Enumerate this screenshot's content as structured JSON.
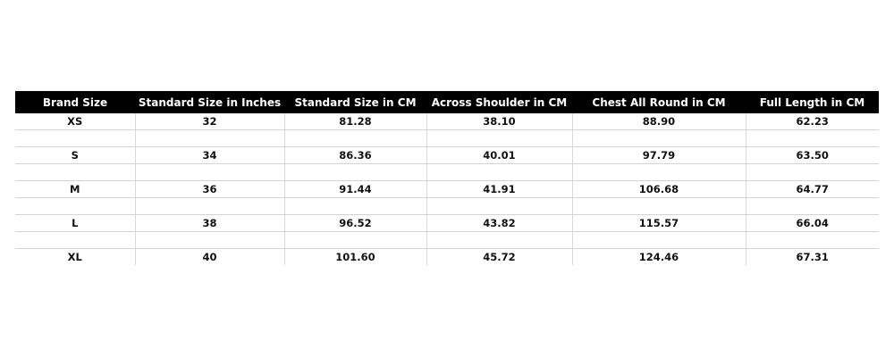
{
  "table": {
    "headers": [
      "Brand Size",
      "Standard Size in Inches",
      "Standard Size in CM",
      "Across Shoulder in CM",
      "Chest All Round in CM",
      "Full Length in CM"
    ],
    "rows": [
      [
        "XS",
        "32",
        "81.28",
        "38.10",
        "88.90",
        "62.23"
      ],
      [
        "S",
        "34",
        "86.36",
        "40.01",
        "97.79",
        "63.50"
      ],
      [
        "M",
        "36",
        "91.44",
        "41.91",
        "106.68",
        "64.77"
      ],
      [
        "L",
        "38",
        "96.52",
        "43.82",
        "115.57",
        "66.04"
      ],
      [
        "XL",
        "40",
        "101.60",
        "45.72",
        "124.46",
        "67.31"
      ]
    ],
    "header_bg": "#000000",
    "header_fg": "#ffffff"
  }
}
